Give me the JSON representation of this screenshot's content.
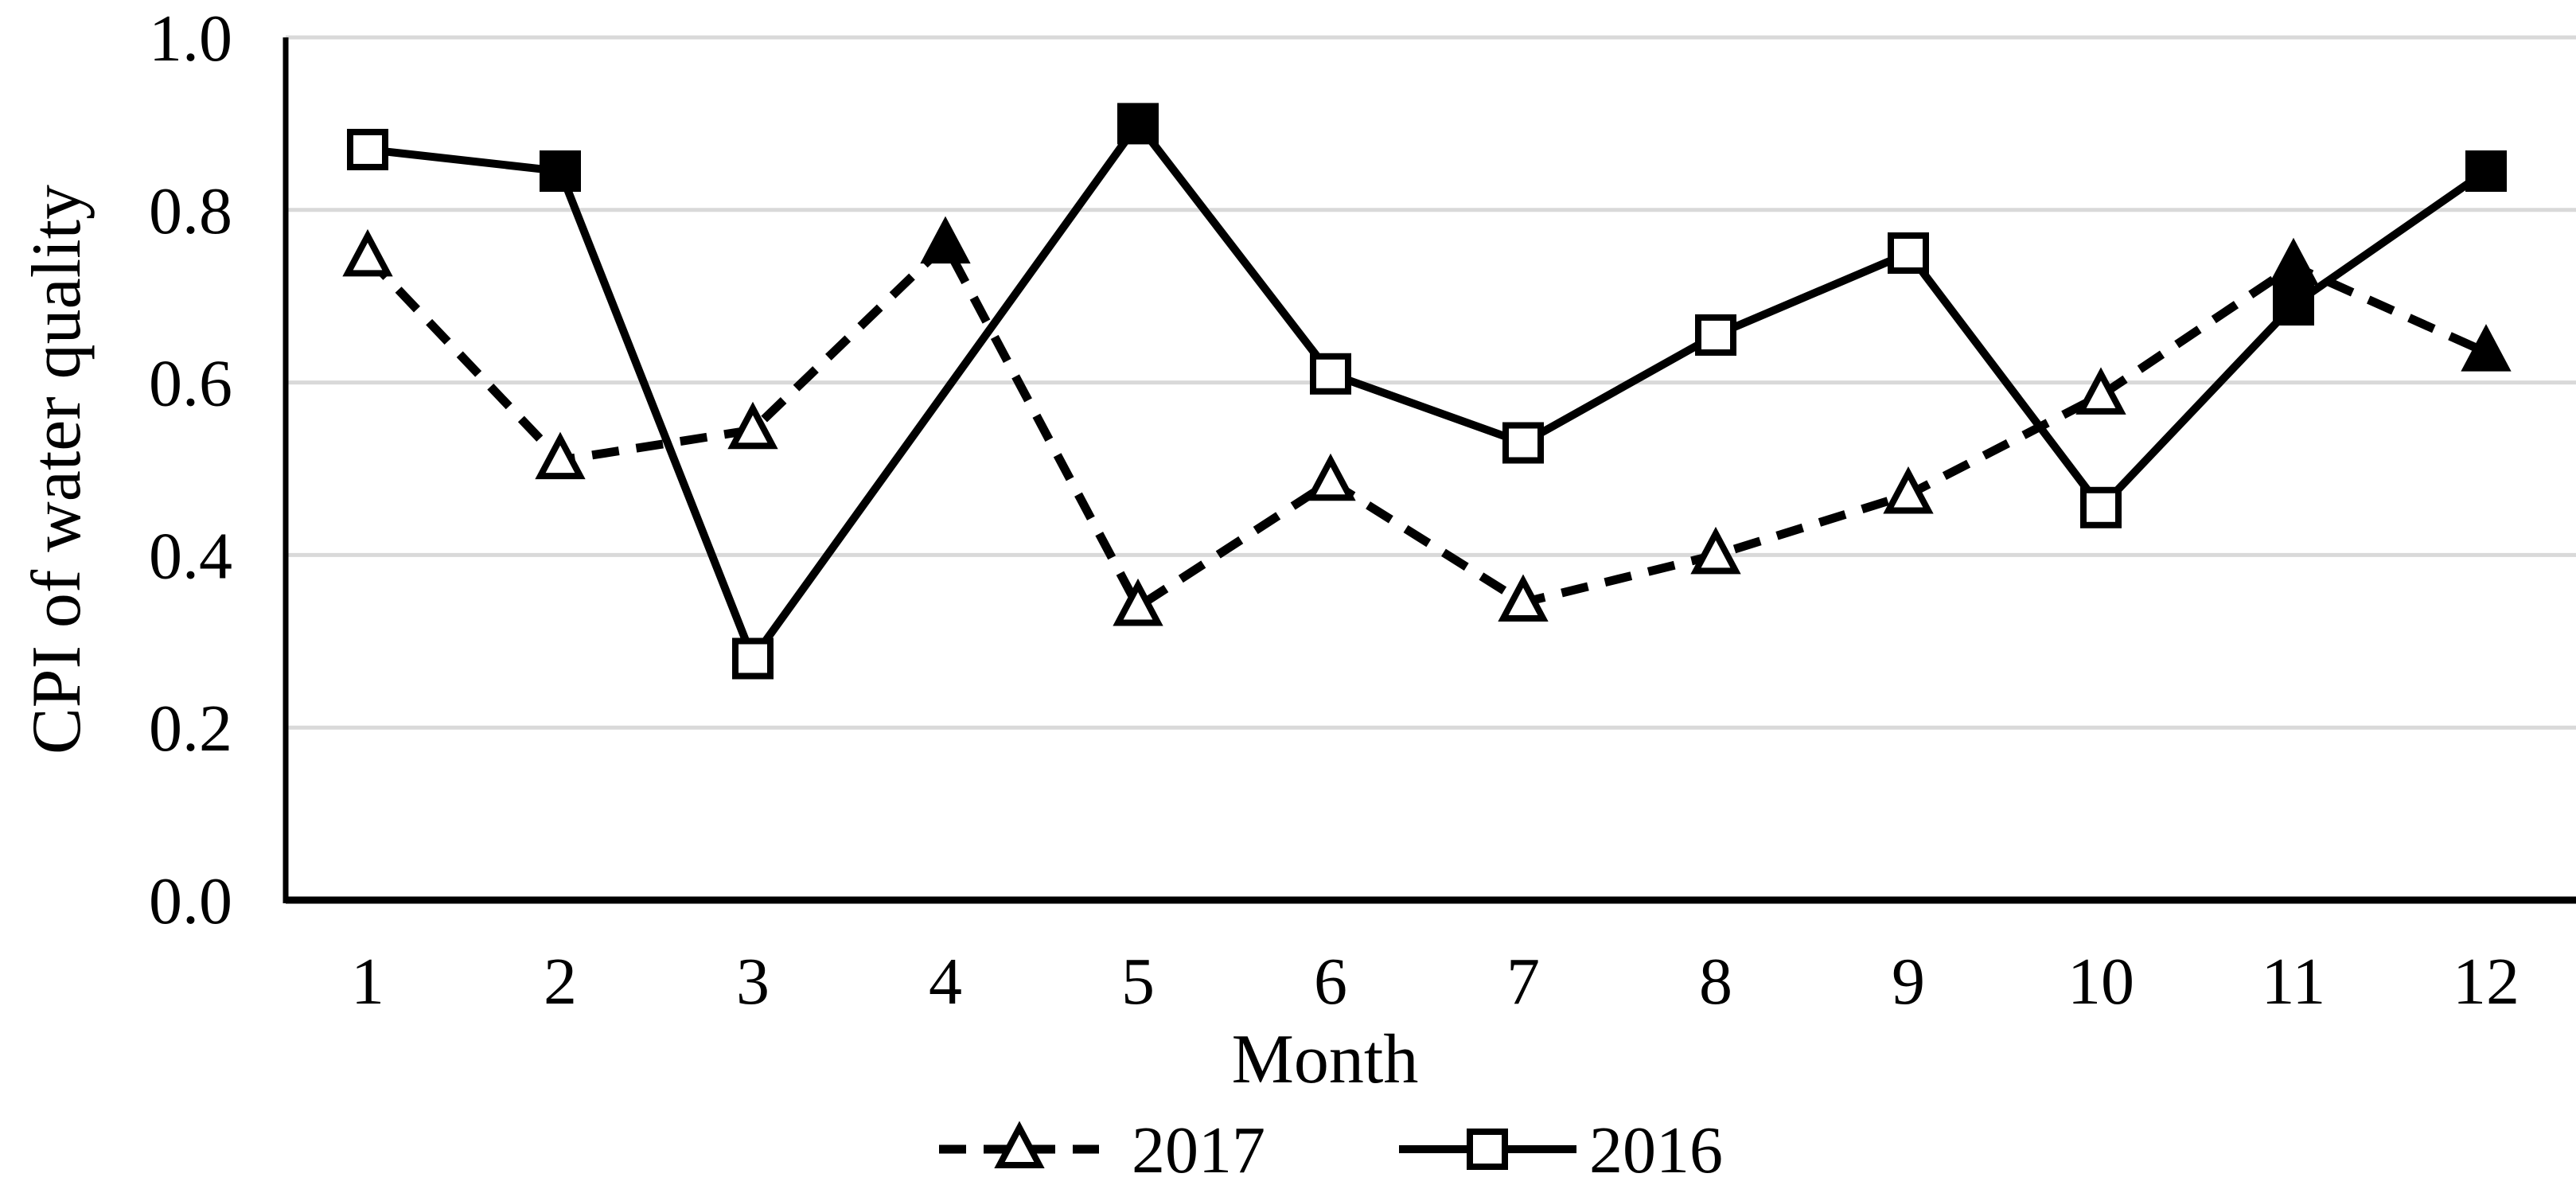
{
  "chart_data": {
    "type": "line",
    "title": "",
    "xlabel": "Month",
    "ylabel": "CPI of water quality",
    "x": [
      1,
      2,
      3,
      4,
      5,
      6,
      7,
      8,
      9,
      10,
      11,
      12
    ],
    "y_ticks": [
      "0.0",
      "0.2",
      "0.4",
      "0.6",
      "0.8",
      "1.0"
    ],
    "ylim": [
      0.0,
      1.0
    ],
    "grid": true,
    "legend_position": "bottom-center",
    "series": [
      {
        "name": "2017",
        "line_style": "dashed",
        "marker": "triangle",
        "values": [
          0.745,
          0.51,
          0.545,
          0.76,
          0.34,
          0.485,
          0.345,
          0.4,
          0.47,
          0.585,
          0.735,
          0.635
        ],
        "marker_filled": [
          false,
          false,
          false,
          true,
          false,
          false,
          false,
          false,
          false,
          false,
          true,
          true
        ]
      },
      {
        "name": "2016",
        "line_style": "solid",
        "marker": "square",
        "values": [
          0.87,
          0.845,
          0.28,
          null,
          0.9,
          0.61,
          0.53,
          0.655,
          0.75,
          0.455,
          0.69,
          0.845
        ],
        "marker_filled": [
          false,
          true,
          false,
          null,
          true,
          false,
          false,
          false,
          false,
          false,
          true,
          true
        ]
      }
    ],
    "colors": {
      "series": "#000000",
      "gridline": "#D9D9D9",
      "background": "#FFFFFF"
    }
  }
}
